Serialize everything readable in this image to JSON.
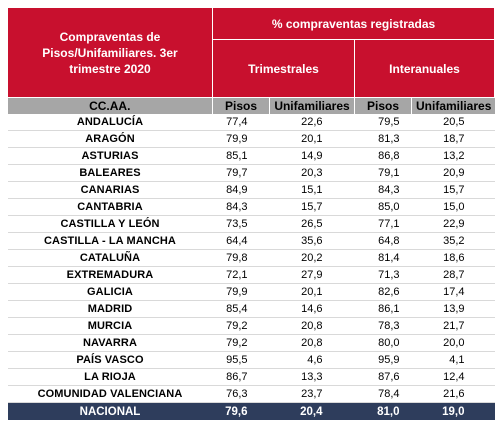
{
  "header": {
    "title": "Compraventas de Pisos/Unifamiliares. 3er trimestre 2020",
    "group_title": "% compraventas registradas",
    "trimestrales": "Trimestrales",
    "interanuales": "Interanuales"
  },
  "subheader": {
    "region": "CC.AA.",
    "pisos_1": "Pisos",
    "unif_1": "Unifamiliares",
    "pisos_2": "Pisos",
    "unif_2": "Unifamiliares"
  },
  "rows": [
    {
      "region": "ANDALUCÍA",
      "tp": "77,4",
      "tu": "22,6",
      "ip": "79,5",
      "iu": "20,5"
    },
    {
      "region": "ARAGÓN",
      "tp": "79,9",
      "tu": "20,1",
      "ip": "81,3",
      "iu": "18,7"
    },
    {
      "region": "ASTURIAS",
      "tp": "85,1",
      "tu": "14,9",
      "ip": "86,8",
      "iu": "13,2"
    },
    {
      "region": "BALEARES",
      "tp": "79,7",
      "tu": "20,3",
      "ip": "79,1",
      "iu": "20,9"
    },
    {
      "region": "CANARIAS",
      "tp": "84,9",
      "tu": "15,1",
      "ip": "84,3",
      "iu": "15,7"
    },
    {
      "region": "CANTABRIA",
      "tp": "84,3",
      "tu": "15,7",
      "ip": "85,0",
      "iu": "15,0"
    },
    {
      "region": "CASTILLA Y LEÓN",
      "tp": "73,5",
      "tu": "26,5",
      "ip": "77,1",
      "iu": "22,9"
    },
    {
      "region": "CASTILLA - LA MANCHA",
      "tp": "64,4",
      "tu": "35,6",
      "ip": "64,8",
      "iu": "35,2"
    },
    {
      "region": "CATALUÑA",
      "tp": "79,8",
      "tu": "20,2",
      "ip": "81,4",
      "iu": "18,6"
    },
    {
      "region": "EXTREMADURA",
      "tp": "72,1",
      "tu": "27,9",
      "ip": "71,3",
      "iu": "28,7"
    },
    {
      "region": "GALICIA",
      "tp": "79,9",
      "tu": "20,1",
      "ip": "82,6",
      "iu": "17,4"
    },
    {
      "region": "MADRID",
      "tp": "85,4",
      "tu": "14,6",
      "ip": "86,1",
      "iu": "13,9"
    },
    {
      "region": "MURCIA",
      "tp": "79,2",
      "tu": "20,8",
      "ip": "78,3",
      "iu": "21,7"
    },
    {
      "region": "NAVARRA",
      "tp": "79,2",
      "tu": "20,8",
      "ip": "80,0",
      "iu": "20,0"
    },
    {
      "region": "PAÍS VASCO",
      "tp": "95,5",
      "tu": "4,6",
      "ip": "95,9",
      "iu": "4,1"
    },
    {
      "region": "LA RIOJA",
      "tp": "86,7",
      "tu": "13,3",
      "ip": "87,6",
      "iu": "12,4"
    },
    {
      "region": "COMUNIDAD VALENCIANA",
      "tp": "76,3",
      "tu": "23,7",
      "ip": "78,4",
      "iu": "21,6"
    }
  ],
  "total": {
    "region": "NACIONAL",
    "tp": "79,6",
    "tu": "20,4",
    "ip": "81,0",
    "iu": "19,0"
  },
  "colors": {
    "header_red": "#c8102e",
    "subheader_gray": "#a6a6a6",
    "total_navy": "#2e3d5c"
  }
}
